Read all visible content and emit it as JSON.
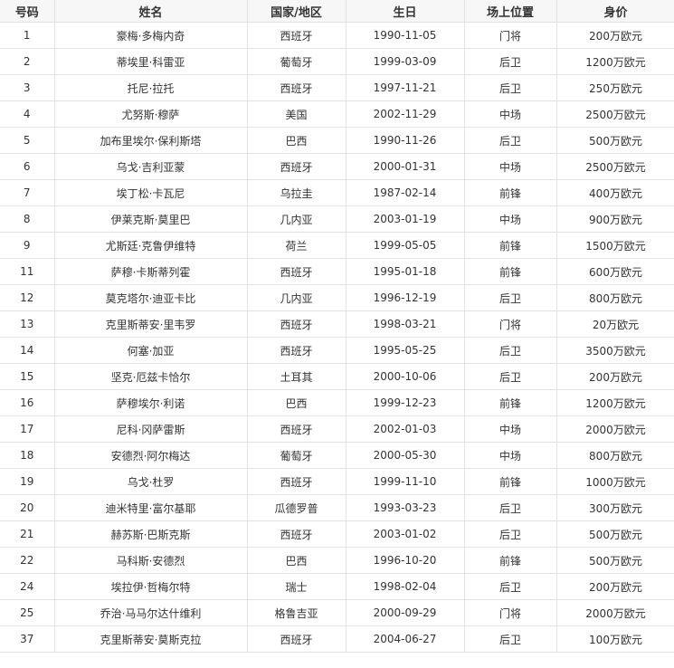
{
  "table": {
    "headers": [
      "号码",
      "姓名",
      "国家/地区",
      "生日",
      "场上位置",
      "身价"
    ],
    "rows": [
      [
        "1",
        "豪梅·多梅内奇",
        "西班牙",
        "1990-11-05",
        "门将",
        "200万欧元"
      ],
      [
        "2",
        "蒂埃里·科雷亚",
        "葡萄牙",
        "1999-03-09",
        "后卫",
        "1200万欧元"
      ],
      [
        "3",
        "托尼·拉托",
        "西班牙",
        "1997-11-21",
        "后卫",
        "250万欧元"
      ],
      [
        "4",
        "尤努斯·穆萨",
        "美国",
        "2002-11-29",
        "中场",
        "2500万欧元"
      ],
      [
        "5",
        "加布里埃尔·保利斯塔",
        "巴西",
        "1990-11-26",
        "后卫",
        "500万欧元"
      ],
      [
        "6",
        "乌戈·吉利亚蒙",
        "西班牙",
        "2000-01-31",
        "中场",
        "2500万欧元"
      ],
      [
        "7",
        "埃丁松·卡瓦尼",
        "乌拉圭",
        "1987-02-14",
        "前锋",
        "400万欧元"
      ],
      [
        "8",
        "伊莱克斯·莫里巴",
        "几内亚",
        "2003-01-19",
        "中场",
        "900万欧元"
      ],
      [
        "9",
        "尤斯廷·克鲁伊维特",
        "荷兰",
        "1999-05-05",
        "前锋",
        "1500万欧元"
      ],
      [
        "11",
        "萨穆·卡斯蒂列霍",
        "西班牙",
        "1995-01-18",
        "前锋",
        "600万欧元"
      ],
      [
        "12",
        "莫克塔尔·迪亚卡比",
        "几内亚",
        "1996-12-19",
        "后卫",
        "800万欧元"
      ],
      [
        "13",
        "克里斯蒂安·里韦罗",
        "西班牙",
        "1998-03-21",
        "门将",
        "20万欧元"
      ],
      [
        "14",
        "何塞·加亚",
        "西班牙",
        "1995-05-25",
        "后卫",
        "3500万欧元"
      ],
      [
        "15",
        "坚克·厄兹卡恰尔",
        "土耳其",
        "2000-10-06",
        "后卫",
        "200万欧元"
      ],
      [
        "16",
        "萨穆埃尔·利诺",
        "巴西",
        "1999-12-23",
        "前锋",
        "1200万欧元"
      ],
      [
        "17",
        "尼科·冈萨雷斯",
        "西班牙",
        "2002-01-03",
        "中场",
        "2000万欧元"
      ],
      [
        "18",
        "安德烈·阿尔梅达",
        "葡萄牙",
        "2000-05-30",
        "中场",
        "800万欧元"
      ],
      [
        "19",
        "乌戈·杜罗",
        "西班牙",
        "1999-11-10",
        "前锋",
        "1000万欧元"
      ],
      [
        "20",
        "迪米特里·富尔基耶",
        "瓜德罗普",
        "1993-03-23",
        "后卫",
        "300万欧元"
      ],
      [
        "21",
        "赫苏斯·巴斯克斯",
        "西班牙",
        "2003-01-02",
        "后卫",
        "500万欧元"
      ],
      [
        "22",
        "马科斯·安德烈",
        "巴西",
        "1996-10-20",
        "前锋",
        "500万欧元"
      ],
      [
        "24",
        "埃拉伊·哲梅尔特",
        "瑞士",
        "1998-02-04",
        "后卫",
        "200万欧元"
      ],
      [
        "25",
        "乔治·马马尔达什维利",
        "格鲁吉亚",
        "2000-09-29",
        "门将",
        "2000万欧元"
      ],
      [
        "37",
        "克里斯蒂安·莫斯克拉",
        "西班牙",
        "2004-06-27",
        "后卫",
        "100万欧元"
      ]
    ]
  }
}
